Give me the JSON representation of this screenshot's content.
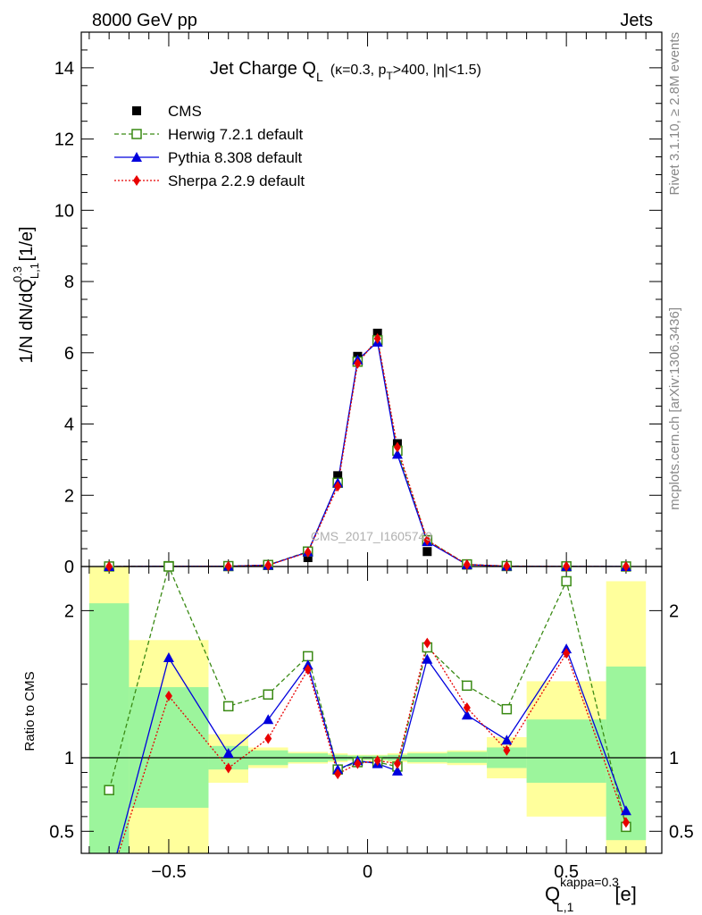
{
  "header": {
    "left": "8000 GeV pp",
    "right": "Jets"
  },
  "side_text": {
    "rivet": "Rivet 3.1.10, ≥ 2.8M events",
    "mcplots": "mcplots.cern.ch [arXiv:1306.3436]"
  },
  "watermark": "CMS_2017_I1605749",
  "plot_title": {
    "main": "Jet Charge Q",
    "main_sub": "L",
    "pre": "(κ=0.3, p",
    "pt_sub": "T",
    "post": ">400, |η|<1.5)"
  },
  "y_axis_label": {
    "a": "1/N dN/dQ",
    "sup": "0.3",
    "sub": "L,1",
    "b": " [1/e]"
  },
  "ratio_axis_label": "Ratio to CMS",
  "x_axis_label": {
    "q": "Q",
    "sup": "kappa=0.3",
    "sub": "L,1",
    "unit": "[e]"
  },
  "legend": [
    {
      "label": "CMS",
      "color": "#000000",
      "marker": "square-filled"
    },
    {
      "label": "Herwig 7.2.1 default",
      "color": "#3a8a14",
      "marker": "square-open"
    },
    {
      "label": "Pythia 8.308 default",
      "color": "#0000dd",
      "marker": "triangle"
    },
    {
      "label": "Sherpa 2.2.9 default",
      "color": "#e80000",
      "marker": "diamond"
    }
  ],
  "chart_data": {
    "type": "scatter",
    "x": [
      -0.65,
      -0.5,
      -0.35,
      -0.25,
      -0.15,
      -0.075,
      -0.025,
      0.025,
      0.075,
      0.15,
      0.25,
      0.35,
      0.5,
      0.65
    ],
    "bin_edges": [
      -0.7,
      -0.6,
      -0.4,
      -0.3,
      -0.2,
      -0.1,
      -0.05,
      0.0,
      0.05,
      0.1,
      0.2,
      0.3,
      0.4,
      0.6,
      0.7
    ],
    "main": {
      "xlim": [
        -0.72,
        0.74
      ],
      "ylim": [
        0,
        15
      ],
      "yticks": [
        0,
        2,
        4,
        6,
        8,
        10,
        12,
        14
      ],
      "series": [
        {
          "name": "CMS",
          "values": [
            0.002,
            0.004,
            0.008,
            0.03,
            0.25,
            2.55,
            5.9,
            6.55,
            3.45,
            0.42,
            0.04,
            0.01,
            0.002,
            0.002
          ]
        },
        {
          "name": "Herwig 7.2.1 default",
          "values": [
            0.0016,
            0.009,
            0.011,
            0.043,
            0.42,
            2.35,
            5.75,
            6.35,
            3.25,
            0.74,
            0.06,
            0.013,
            0.0044,
            0.0011
          ]
        },
        {
          "name": "Pythia 8.308 default",
          "values": [
            0.0003,
            0.0068,
            0.0083,
            0.038,
            0.41,
            2.35,
            5.8,
            6.3,
            3.15,
            0.7,
            0.052,
            0.0112,
            0.0035,
            0.0013
          ]
        },
        {
          "name": "Sherpa 2.2.9 default",
          "values": [
            0.0003,
            0.0057,
            0.0075,
            0.034,
            0.4,
            2.25,
            5.7,
            6.4,
            3.35,
            0.74,
            0.054,
            0.0103,
            0.0034,
            0.0011
          ]
        }
      ]
    },
    "ratio": {
      "ylim": [
        0.35,
        2.3
      ],
      "yticks": [
        0.5,
        1,
        2
      ],
      "xticks": [
        -0.5,
        0,
        0.5
      ],
      "series": [
        {
          "name": "Herwig 7.2.1 default",
          "values": [
            0.78,
            2.3,
            1.35,
            1.43,
            1.69,
            0.92,
            0.97,
            0.97,
            0.94,
            1.75,
            1.49,
            1.33,
            2.2,
            0.53
          ]
        },
        {
          "name": "Pythia 8.308 default",
          "values": [
            0.15,
            1.68,
            1.03,
            1.26,
            1.63,
            0.92,
            0.98,
            0.96,
            0.91,
            1.67,
            1.29,
            1.12,
            1.74,
            0.64
          ]
        },
        {
          "name": "Sherpa 2.2.9 default",
          "values": [
            0.15,
            1.42,
            0.93,
            1.13,
            1.6,
            0.89,
            0.96,
            0.98,
            0.96,
            1.78,
            1.34,
            1.05,
            1.71,
            0.56
          ]
        }
      ],
      "band_inner": [
        [
          0.35,
          2.05
        ],
        [
          0.66,
          1.48
        ],
        [
          0.92,
          1.08
        ],
        [
          0.95,
          1.05
        ],
        [
          0.97,
          1.03
        ],
        [
          0.98,
          1.02
        ],
        [
          0.985,
          1.015
        ],
        [
          0.985,
          1.015
        ],
        [
          0.98,
          1.02
        ],
        [
          0.97,
          1.03
        ],
        [
          0.965,
          1.04
        ],
        [
          0.93,
          1.07
        ],
        [
          0.83,
          1.26
        ],
        [
          0.44,
          1.62
        ]
      ],
      "band_outer": [
        [
          0.35,
          2.3
        ],
        [
          0.35,
          1.8
        ],
        [
          0.83,
          1.16
        ],
        [
          0.93,
          1.07
        ],
        [
          0.96,
          1.04
        ],
        [
          0.97,
          1.03
        ],
        [
          0.98,
          1.02
        ],
        [
          0.98,
          1.02
        ],
        [
          0.97,
          1.03
        ],
        [
          0.96,
          1.04
        ],
        [
          0.95,
          1.05
        ],
        [
          0.86,
          1.14
        ],
        [
          0.6,
          1.52
        ],
        [
          0.35,
          2.2
        ]
      ],
      "band_colors": {
        "inner": "#9cf59c",
        "outer": "#ffff9c"
      }
    }
  }
}
